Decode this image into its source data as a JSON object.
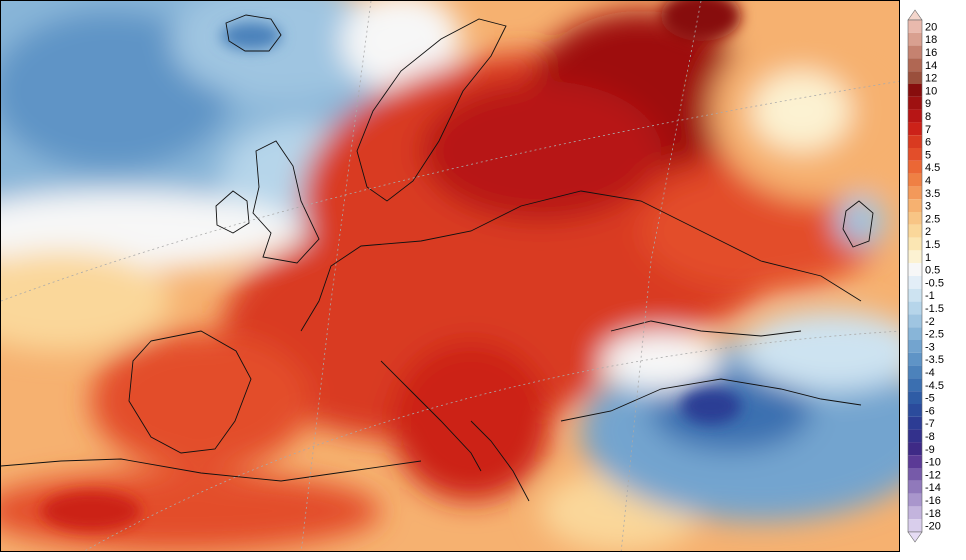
{
  "colorbar": {
    "labels": [
      "20",
      "18",
      "16",
      "14",
      "12",
      "10",
      "9",
      "8",
      "7",
      "6",
      "5",
      "4.5",
      "4",
      "3.5",
      "3",
      "2.5",
      "2",
      "1.5",
      "1",
      "0.5",
      "-0.5",
      "-1",
      "-1.5",
      "-2",
      "-2.5",
      "-3",
      "-3.5",
      "-4",
      "-4.5",
      "-5",
      "-6",
      "-7",
      "-8",
      "-9",
      "-10",
      "-12",
      "-14",
      "-16",
      "-18",
      "-20"
    ],
    "colors": [
      "#e9b9ad",
      "#d9a090",
      "#c58270",
      "#b06753",
      "#9a4f3c",
      "#870d0d",
      "#9e1111",
      "#b71515",
      "#cc2219",
      "#d93a20",
      "#e34e2a",
      "#eb6735",
      "#ef8044",
      "#f3995a",
      "#f6b170",
      "#f8c585",
      "#fad79a",
      "#fbe6b3",
      "#fcf2d2",
      "#f7f7f7",
      "#e3eef7",
      "#cde3f1",
      "#b6d5ea",
      "#9fc5e1",
      "#88b5d8",
      "#73a4cf",
      "#5f94c6",
      "#4c82bb",
      "#3b6fb0",
      "#2f5ca5",
      "#2b4b9c",
      "#2c3c94",
      "#33318c",
      "#3e2a86",
      "#5b3a96",
      "#765aa9",
      "#9079bb",
      "#a996cc",
      "#c3b4dd",
      "#d9ceec"
    ],
    "arrow_top_color": "#f4d6cc",
    "arrow_bottom_color": "#e6dcf4"
  }
}
